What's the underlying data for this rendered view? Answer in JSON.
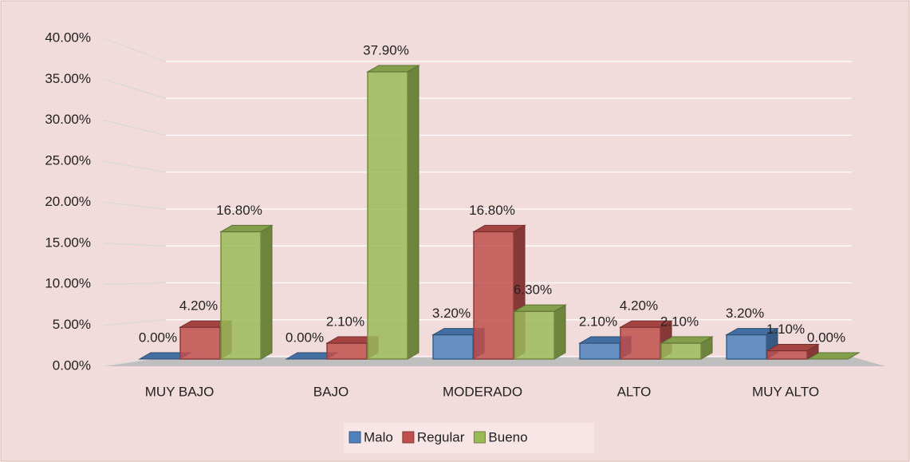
{
  "chart_data": {
    "type": "bar3d",
    "categories": [
      "MUY BAJO",
      "BAJO",
      "MODERADO",
      "ALTO",
      "MUY ALTO"
    ],
    "series": [
      {
        "name": "Malo",
        "color": "#4f81bd",
        "values": [
          0,
          0,
          3.2,
          2.1,
          3.2
        ],
        "value_labels": [
          "0.00%",
          "0.00%",
          "3.20%",
          "2.10%",
          "3.20%"
        ]
      },
      {
        "name": "Regular",
        "color": "#c0504d",
        "values": [
          4.2,
          2.1,
          16.8,
          4.2,
          1.1
        ],
        "value_labels": [
          "4.20%",
          "2.10%",
          "16.80%",
          "4.20%",
          "1.10%"
        ]
      },
      {
        "name": "Bueno",
        "color": "#9bbb59",
        "values": [
          16.8,
          37.9,
          6.3,
          2.1,
          0
        ],
        "value_labels": [
          "16.80%",
          "37.90%",
          "6.30%",
          "2.10%",
          "0.00%"
        ]
      }
    ],
    "ylim": [
      0,
      40
    ],
    "yticks": [
      {
        "value": 0,
        "label": "0.00%"
      },
      {
        "value": 5,
        "label": "5.00%"
      },
      {
        "value": 10,
        "label": "10.00%"
      },
      {
        "value": 15,
        "label": "15.00%"
      },
      {
        "value": 20,
        "label": "20.00%"
      },
      {
        "value": 25,
        "label": "25.00%"
      },
      {
        "value": 30,
        "label": "30.00%"
      },
      {
        "value": 35,
        "label": "35.00%"
      },
      {
        "value": 40,
        "label": "40.00%"
      }
    ],
    "grid": true,
    "legend": "bottom"
  }
}
